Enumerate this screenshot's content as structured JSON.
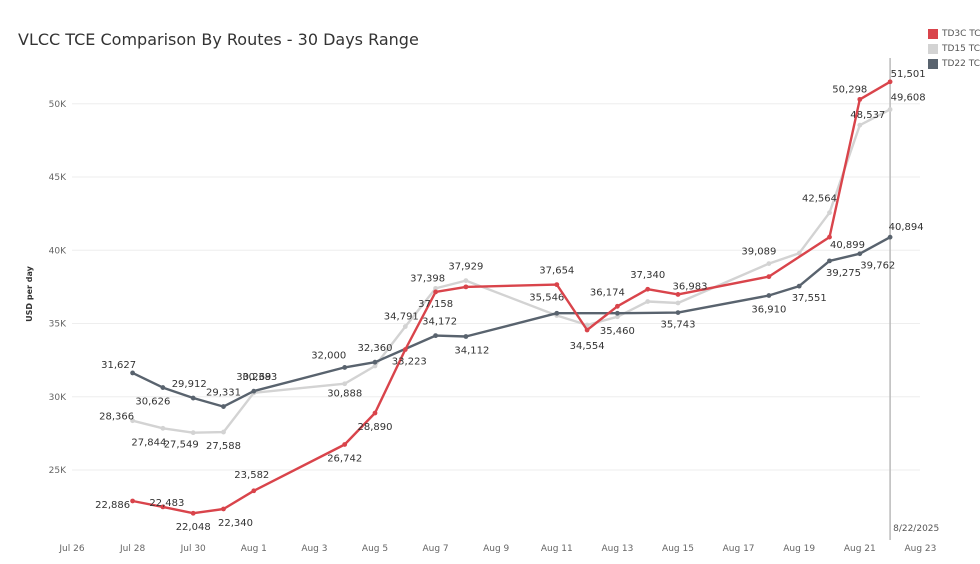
{
  "title": "VLCC TCE Comparison By Routes - 30 Days Range",
  "colors": {
    "TD3C": "#d9444b",
    "TD15": "#d3d3d3",
    "TD22": "#59636e",
    "grid": "#eeeeee",
    "tick": "#666666",
    "label": "#333333"
  },
  "legend": [
    {
      "label": "TD3C TCE",
      "color": "#d9444b"
    },
    {
      "label": "TD15 TCE",
      "color": "#d3d3d3"
    },
    {
      "label": "TD22 TCE",
      "color": "#59636e"
    }
  ],
  "chart_data": {
    "type": "line",
    "title": "VLCC TCE Comparison By Routes - 30 Days Range",
    "xlabel": "",
    "ylabel": "USD per day",
    "x_ticks": [
      "Jul 26",
      "Jul 28",
      "Jul 30",
      "Aug 1",
      "Aug 3",
      "Aug 5",
      "Aug 7",
      "Aug 9",
      "Aug 11",
      "Aug 13",
      "Aug 15",
      "Aug 17",
      "Aug 19",
      "Aug 21",
      "Aug 23"
    ],
    "y_ticks": [
      "25K",
      "30K",
      "35K",
      "40K",
      "45K",
      "50K"
    ],
    "ylim": [
      20000,
      53000
    ],
    "grid": true,
    "legend_position": "top-right",
    "reference_line": {
      "x": "2025-08-22",
      "label": "8/22/2025"
    },
    "series": [
      {
        "name": "TD3C TCE",
        "points": [
          {
            "x": "2025-07-28",
            "y": 22886,
            "label": "22,886"
          },
          {
            "x": "2025-07-29",
            "y": 22483,
            "label": "22,483"
          },
          {
            "x": "2025-07-30",
            "y": 22048,
            "label": "22,048"
          },
          {
            "x": "2025-07-31",
            "y": 22340,
            "label": "22,340"
          },
          {
            "x": "2025-08-01",
            "y": 23582,
            "label": "23,582"
          },
          {
            "x": "2025-08-04",
            "y": 26742,
            "label": "26,742"
          },
          {
            "x": "2025-08-05",
            "y": 28890,
            "label": "28,890"
          },
          {
            "x": "2025-08-06",
            "y": 33223,
            "label": "33,223"
          },
          {
            "x": "2025-08-07",
            "y": 37158,
            "label": "37,158"
          },
          {
            "x": "2025-08-08",
            "y": 37500,
            "label": ""
          },
          {
            "x": "2025-08-11",
            "y": 37654,
            "label": "37,654"
          },
          {
            "x": "2025-08-12",
            "y": 34554,
            "label": "34,554"
          },
          {
            "x": "2025-08-13",
            "y": 36174,
            "label": "36,174"
          },
          {
            "x": "2025-08-14",
            "y": 37340,
            "label": "37,340"
          },
          {
            "x": "2025-08-15",
            "y": 36983,
            "label": "36,983"
          },
          {
            "x": "2025-08-18",
            "y": 38200,
            "label": ""
          },
          {
            "x": "2025-08-20",
            "y": 40899,
            "label": "40,899"
          },
          {
            "x": "2025-08-21",
            "y": 50298,
            "label": "50,298"
          },
          {
            "x": "2025-08-22",
            "y": 51501,
            "label": "51,501"
          }
        ]
      },
      {
        "name": "TD15 TCE",
        "points": [
          {
            "x": "2025-07-28",
            "y": 28366,
            "label": "28,366"
          },
          {
            "x": "2025-07-29",
            "y": 27844,
            "label": "27,844"
          },
          {
            "x": "2025-07-30",
            "y": 27549,
            "label": "27,549"
          },
          {
            "x": "2025-07-31",
            "y": 27588,
            "label": "27,588"
          },
          {
            "x": "2025-08-01",
            "y": 30269,
            "label": "30,269"
          },
          {
            "x": "2025-08-04",
            "y": 30888,
            "label": "30,888"
          },
          {
            "x": "2025-08-05",
            "y": 32100,
            "label": ""
          },
          {
            "x": "2025-08-06",
            "y": 34791,
            "label": "34,791"
          },
          {
            "x": "2025-08-07",
            "y": 37398,
            "label": "37,398"
          },
          {
            "x": "2025-08-08",
            "y": 37929,
            "label": "37,929"
          },
          {
            "x": "2025-08-11",
            "y": 35546,
            "label": "35,546"
          },
          {
            "x": "2025-08-12",
            "y": 34900,
            "label": ""
          },
          {
            "x": "2025-08-13",
            "y": 35460,
            "label": "35,460"
          },
          {
            "x": "2025-08-14",
            "y": 36500,
            "label": ""
          },
          {
            "x": "2025-08-15",
            "y": 36400,
            "label": ""
          },
          {
            "x": "2025-08-18",
            "y": 39089,
            "label": "39,089"
          },
          {
            "x": "2025-08-19",
            "y": 39800,
            "label": ""
          },
          {
            "x": "2025-08-20",
            "y": 42564,
            "label": "42,564"
          },
          {
            "x": "2025-08-21",
            "y": 48537,
            "label": "48,537"
          },
          {
            "x": "2025-08-22",
            "y": 49608,
            "label": "49,608"
          }
        ]
      },
      {
        "name": "TD22 TCE",
        "points": [
          {
            "x": "2025-07-28",
            "y": 31627,
            "label": "31,627"
          },
          {
            "x": "2025-07-29",
            "y": 30626,
            "label": "30,626"
          },
          {
            "x": "2025-07-30",
            "y": 29912,
            "label": "29,912"
          },
          {
            "x": "2025-07-31",
            "y": 29331,
            "label": "29,331"
          },
          {
            "x": "2025-08-01",
            "y": 30383,
            "label": "30,383"
          },
          {
            "x": "2025-08-04",
            "y": 32000,
            "label": "32,000"
          },
          {
            "x": "2025-08-05",
            "y": 32360,
            "label": "32,360"
          },
          {
            "x": "2025-08-07",
            "y": 34172,
            "label": "34,172"
          },
          {
            "x": "2025-08-08",
            "y": 34112,
            "label": "34,112"
          },
          {
            "x": "2025-08-11",
            "y": 35700,
            "label": ""
          },
          {
            "x": "2025-08-13",
            "y": 35700,
            "label": ""
          },
          {
            "x": "2025-08-15",
            "y": 35743,
            "label": "35,743"
          },
          {
            "x": "2025-08-18",
            "y": 36910,
            "label": "36,910"
          },
          {
            "x": "2025-08-19",
            "y": 37551,
            "label": "37,551"
          },
          {
            "x": "2025-08-20",
            "y": 39275,
            "label": "39,275"
          },
          {
            "x": "2025-08-21",
            "y": 39762,
            "label": "39,762"
          },
          {
            "x": "2025-08-22",
            "y": 40894,
            "label": "40,894"
          }
        ]
      }
    ]
  }
}
